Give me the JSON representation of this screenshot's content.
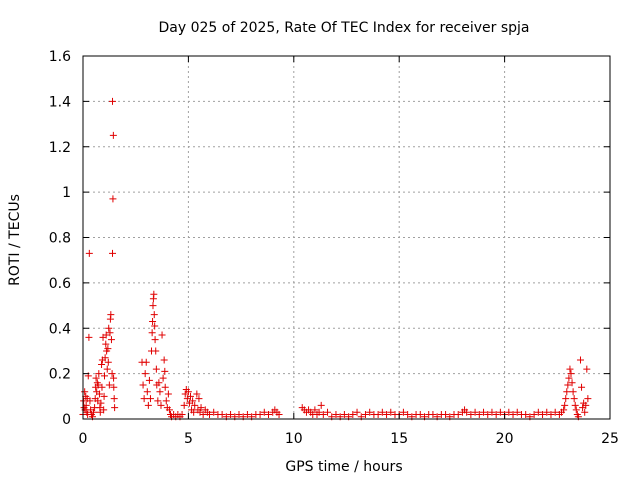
{
  "chart_data": {
    "type": "scatter",
    "title": "Day 025 of 2025, Rate Of TEC Index for receiver spja",
    "xlabel": "GPS time / hours",
    "ylabel": "ROTI / TECUs",
    "xlim": [
      0,
      25
    ],
    "ylim": [
      0,
      1.6
    ],
    "x_ticks": [
      0,
      5,
      10,
      15,
      20,
      25
    ],
    "x_tick_labels": [
      "0",
      "5",
      "10",
      "15",
      "20",
      "25"
    ],
    "y_ticks": [
      0,
      0.2,
      0.4,
      0.6,
      0.8,
      1.0,
      1.2,
      1.4,
      1.6
    ],
    "y_tick_labels": [
      "0",
      "0.2",
      "0.4",
      "0.6",
      "0.8",
      "1",
      "1.2",
      "1.4",
      "1.6"
    ],
    "grid": true,
    "marker": "plus",
    "marker_color": "#e00000",
    "series": [
      {
        "points": [
          [
            0.0,
            0.02
          ],
          [
            0.03,
            0.08
          ],
          [
            0.05,
            0.05
          ],
          [
            0.08,
            0.12
          ],
          [
            0.1,
            0.04
          ],
          [
            0.13,
            0.1
          ],
          [
            0.15,
            0.06
          ],
          [
            0.18,
            0.03
          ],
          [
            0.2,
            0.09
          ],
          [
            0.22,
            0.02
          ],
          [
            0.25,
            0.19
          ],
          [
            0.28,
            0.36
          ],
          [
            0.3,
            0.73
          ],
          [
            0.33,
            0.08
          ],
          [
            0.36,
            0.04
          ],
          [
            0.4,
            0.02
          ],
          [
            0.45,
            0.01
          ],
          [
            0.5,
            0.03
          ],
          [
            0.55,
            0.05
          ],
          [
            0.58,
            0.09
          ],
          [
            0.6,
            0.14
          ],
          [
            0.62,
            0.18
          ],
          [
            0.65,
            0.12
          ],
          [
            0.68,
            0.16
          ],
          [
            0.7,
            0.08
          ],
          [
            0.72,
            0.15
          ],
          [
            0.75,
            0.2
          ],
          [
            0.78,
            0.11
          ],
          [
            0.8,
            0.05
          ],
          [
            0.82,
            0.03
          ],
          [
            0.85,
            0.07
          ],
          [
            0.88,
            0.24
          ],
          [
            0.9,
            0.14
          ],
          [
            0.92,
            0.26
          ],
          [
            0.95,
            0.36
          ],
          [
            0.98,
            0.04
          ],
          [
            1.0,
            0.1
          ],
          [
            1.02,
            0.19
          ],
          [
            1.05,
            0.27
          ],
          [
            1.08,
            0.33
          ],
          [
            1.1,
            0.37
          ],
          [
            1.12,
            0.3
          ],
          [
            1.15,
            0.22
          ],
          [
            1.18,
            0.31
          ],
          [
            1.2,
            0.25
          ],
          [
            1.22,
            0.4
          ],
          [
            1.25,
            0.15
          ],
          [
            1.28,
            0.38
          ],
          [
            1.3,
            0.44
          ],
          [
            1.32,
            0.46
          ],
          [
            1.35,
            0.35
          ],
          [
            1.38,
            0.2
          ],
          [
            1.4,
            1.4
          ],
          [
            1.4,
            0.73
          ],
          [
            1.42,
            0.97
          ],
          [
            1.44,
            1.25
          ],
          [
            1.45,
            0.18
          ],
          [
            1.46,
            0.14
          ],
          [
            1.48,
            0.09
          ],
          [
            1.5,
            0.05
          ],
          [
            2.8,
            0.25
          ],
          [
            2.85,
            0.15
          ],
          [
            2.9,
            0.09
          ],
          [
            2.95,
            0.2
          ],
          [
            3.0,
            0.25
          ],
          [
            3.05,
            0.12
          ],
          [
            3.1,
            0.06
          ],
          [
            3.15,
            0.17
          ],
          [
            3.2,
            0.09
          ],
          [
            3.25,
            0.3
          ],
          [
            3.28,
            0.38
          ],
          [
            3.3,
            0.43
          ],
          [
            3.32,
            0.5
          ],
          [
            3.34,
            0.53
          ],
          [
            3.36,
            0.55
          ],
          [
            3.38,
            0.46
          ],
          [
            3.4,
            0.41
          ],
          [
            3.42,
            0.35
          ],
          [
            3.45,
            0.3
          ],
          [
            3.48,
            0.22
          ],
          [
            3.5,
            0.15
          ],
          [
            3.55,
            0.08
          ],
          [
            3.6,
            0.16
          ],
          [
            3.65,
            0.12
          ],
          [
            3.7,
            0.06
          ],
          [
            3.75,
            0.37
          ],
          [
            3.8,
            0.18
          ],
          [
            3.85,
            0.26
          ],
          [
            3.88,
            0.21
          ],
          [
            3.9,
            0.14
          ],
          [
            3.95,
            0.08
          ],
          [
            4.0,
            0.05
          ],
          [
            4.05,
            0.11
          ],
          [
            4.1,
            0.04
          ],
          [
            4.15,
            0.02
          ],
          [
            4.2,
            0.01
          ],
          [
            4.3,
            0.02
          ],
          [
            4.4,
            0.01
          ],
          [
            4.5,
            0.02
          ],
          [
            4.6,
            0.01
          ],
          [
            4.7,
            0.02
          ],
          [
            4.8,
            0.06
          ],
          [
            4.85,
            0.11
          ],
          [
            4.9,
            0.13
          ],
          [
            4.95,
            0.09
          ],
          [
            5.0,
            0.12
          ],
          [
            5.05,
            0.07
          ],
          [
            5.1,
            0.1
          ],
          [
            5.15,
            0.04
          ],
          [
            5.2,
            0.08
          ],
          [
            5.25,
            0.03
          ],
          [
            5.3,
            0.06
          ],
          [
            5.4,
            0.11
          ],
          [
            5.45,
            0.04
          ],
          [
            5.5,
            0.09
          ],
          [
            5.55,
            0.03
          ],
          [
            5.6,
            0.05
          ],
          [
            5.7,
            0.02
          ],
          [
            5.8,
            0.04
          ],
          [
            5.9,
            0.03
          ],
          [
            6.0,
            0.02
          ],
          [
            6.2,
            0.03
          ],
          [
            6.4,
            0.02
          ],
          [
            6.6,
            0.02
          ],
          [
            6.8,
            0.01
          ],
          [
            7.0,
            0.02
          ],
          [
            7.2,
            0.01
          ],
          [
            7.4,
            0.02
          ],
          [
            7.6,
            0.01
          ],
          [
            7.8,
            0.02
          ],
          [
            8.0,
            0.01
          ],
          [
            8.2,
            0.02
          ],
          [
            8.4,
            0.02
          ],
          [
            8.6,
            0.03
          ],
          [
            8.8,
            0.02
          ],
          [
            9.0,
            0.03
          ],
          [
            9.1,
            0.04
          ],
          [
            9.2,
            0.03
          ],
          [
            9.3,
            0.02
          ],
          [
            10.4,
            0.05
          ],
          [
            10.5,
            0.04
          ],
          [
            10.6,
            0.03
          ],
          [
            10.7,
            0.04
          ],
          [
            10.8,
            0.03
          ],
          [
            10.9,
            0.02
          ],
          [
            11.0,
            0.04
          ],
          [
            11.1,
            0.02
          ],
          [
            11.2,
            0.03
          ],
          [
            11.3,
            0.06
          ],
          [
            11.4,
            0.02
          ],
          [
            11.6,
            0.03
          ],
          [
            11.8,
            0.01
          ],
          [
            12.0,
            0.02
          ],
          [
            12.2,
            0.01
          ],
          [
            12.4,
            0.02
          ],
          [
            12.6,
            0.01
          ],
          [
            12.8,
            0.02
          ],
          [
            13.0,
            0.03
          ],
          [
            13.2,
            0.01
          ],
          [
            13.4,
            0.02
          ],
          [
            13.6,
            0.03
          ],
          [
            13.8,
            0.02
          ],
          [
            14.0,
            0.02
          ],
          [
            14.2,
            0.03
          ],
          [
            14.4,
            0.02
          ],
          [
            14.6,
            0.03
          ],
          [
            14.8,
            0.02
          ],
          [
            15.0,
            0.02
          ],
          [
            15.2,
            0.03
          ],
          [
            15.4,
            0.02
          ],
          [
            15.6,
            0.01
          ],
          [
            15.8,
            0.02
          ],
          [
            16.0,
            0.02
          ],
          [
            16.2,
            0.01
          ],
          [
            16.4,
            0.02
          ],
          [
            16.6,
            0.02
          ],
          [
            16.8,
            0.01
          ],
          [
            17.0,
            0.02
          ],
          [
            17.2,
            0.02
          ],
          [
            17.4,
            0.01
          ],
          [
            17.6,
            0.02
          ],
          [
            17.8,
            0.02
          ],
          [
            18.0,
            0.03
          ],
          [
            18.1,
            0.04
          ],
          [
            18.2,
            0.03
          ],
          [
            18.4,
            0.02
          ],
          [
            18.6,
            0.03
          ],
          [
            18.8,
            0.02
          ],
          [
            19.0,
            0.03
          ],
          [
            19.2,
            0.02
          ],
          [
            19.4,
            0.03
          ],
          [
            19.6,
            0.02
          ],
          [
            19.8,
            0.03
          ],
          [
            20.0,
            0.02
          ],
          [
            20.2,
            0.03
          ],
          [
            20.4,
            0.02
          ],
          [
            20.6,
            0.03
          ],
          [
            20.8,
            0.02
          ],
          [
            21.0,
            0.02
          ],
          [
            21.2,
            0.01
          ],
          [
            21.4,
            0.02
          ],
          [
            21.6,
            0.03
          ],
          [
            21.8,
            0.02
          ],
          [
            22.0,
            0.03
          ],
          [
            22.2,
            0.02
          ],
          [
            22.4,
            0.03
          ],
          [
            22.6,
            0.02
          ],
          [
            22.7,
            0.03
          ],
          [
            22.8,
            0.04
          ],
          [
            22.85,
            0.06
          ],
          [
            22.9,
            0.09
          ],
          [
            22.95,
            0.12
          ],
          [
            23.0,
            0.15
          ],
          [
            23.05,
            0.18
          ],
          [
            23.1,
            0.22
          ],
          [
            23.15,
            0.2
          ],
          [
            23.2,
            0.16
          ],
          [
            23.25,
            0.12
          ],
          [
            23.3,
            0.09
          ],
          [
            23.35,
            0.06
          ],
          [
            23.4,
            0.04
          ],
          [
            23.45,
            0.02
          ],
          [
            23.5,
            0.01
          ],
          [
            23.6,
            0.26
          ],
          [
            23.65,
            0.14
          ],
          [
            23.7,
            0.05
          ],
          [
            23.75,
            0.07
          ],
          [
            23.8,
            0.03
          ],
          [
            23.85,
            0.06
          ],
          [
            23.9,
            0.22
          ],
          [
            23.95,
            0.09
          ]
        ]
      }
    ]
  }
}
